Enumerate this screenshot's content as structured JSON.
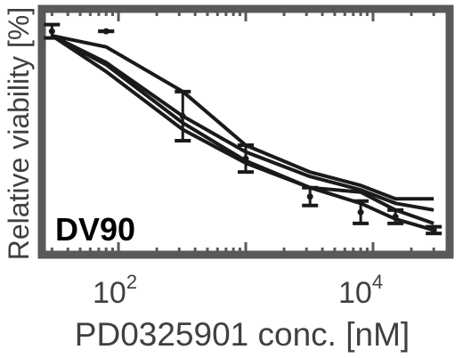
{
  "chart_data": {
    "type": "line",
    "title": "",
    "panel_label": "DV90",
    "xlabel": "PD0325901 conc. [nM]",
    "ylabel": "Relative viability [%]",
    "x_scale": "log",
    "xlim": [
      25,
      40000
    ],
    "ylim": [
      0,
      1.1
    ],
    "x_ticks": [
      {
        "value": 100,
        "base": "10",
        "exp": "2"
      },
      {
        "value": 10000,
        "base": "10",
        "exp": "4"
      }
    ],
    "grid": false,
    "legend": "none",
    "x": [
      30,
      80,
      320,
      1000,
      3200,
      8000,
      15000,
      30000
    ],
    "series": [
      {
        "values": [
          0.98,
          0.93,
          0.73,
          0.49,
          0.37,
          0.31,
          0.25,
          0.25
        ]
      },
      {
        "values": [
          0.98,
          0.86,
          0.62,
          0.46,
          0.35,
          0.29,
          0.23,
          0.2
        ]
      },
      {
        "values": [
          0.98,
          0.85,
          0.59,
          0.42,
          0.3,
          0.28,
          0.2,
          0.14
        ]
      },
      {
        "values": [
          0.98,
          0.82,
          0.56,
          0.41,
          0.3,
          0.23,
          0.16,
          0.11
        ]
      }
    ],
    "observed": {
      "x": [
        30,
        80,
        320,
        1000,
        3200,
        8000,
        15000,
        30000
      ],
      "y": [
        1.0,
        1.0,
        0.62,
        0.43,
        0.26,
        0.19,
        0.17,
        0.11
      ],
      "err": [
        0.03,
        0.0,
        0.11,
        0.06,
        0.04,
        0.05,
        0.03,
        0.015
      ]
    },
    "colors": {
      "line": "#1a1a1a",
      "frame": "#595959",
      "text": "#404040"
    }
  }
}
